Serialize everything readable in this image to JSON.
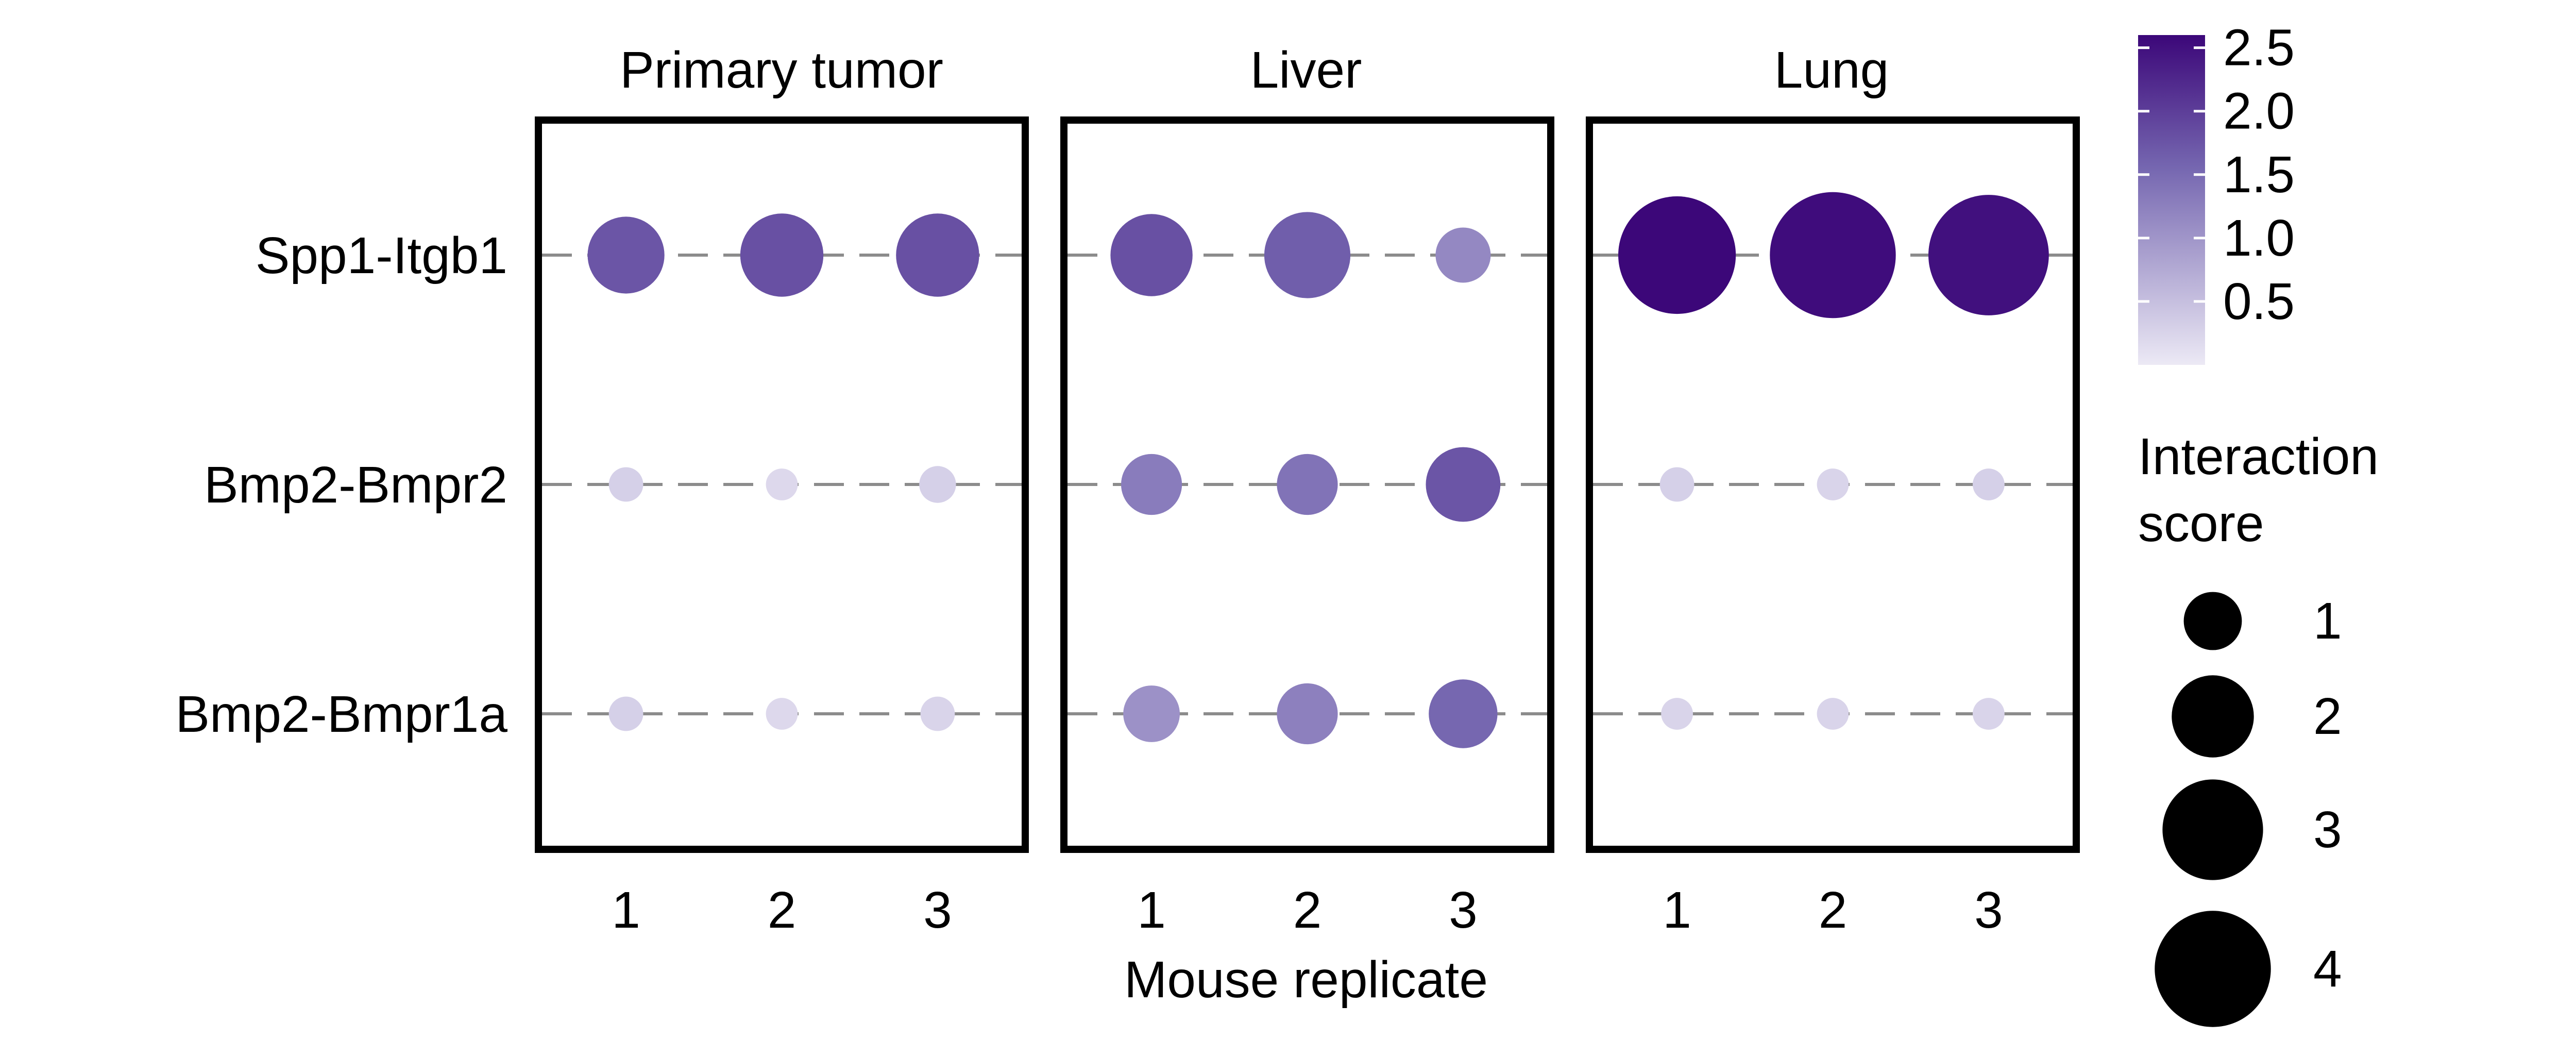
{
  "chart_data": {
    "type": "dot",
    "facets": [
      "Primary tumor",
      "Liver",
      "Lung"
    ],
    "categories": [
      "Spp1-Itgb1",
      "Bmp2-Bmpr2",
      "Bmp2-Bmpr1a"
    ],
    "x_ticks": [
      "1",
      "2",
      "3"
    ],
    "xlabel": "Mouse replicate",
    "ylabel": "",
    "color_range": [
      0,
      2.6
    ],
    "color_scale": {
      "low": "#ece9f5",
      "mid": "#7566b0",
      "high": "#3c0779"
    },
    "colorbar": {
      "ticks": [
        0.5,
        1.0,
        1.5,
        2.0,
        2.5
      ],
      "tick_labels": [
        "0.5",
        "1.0",
        "1.5",
        "2.0",
        "2.5"
      ]
    },
    "size_legend": {
      "title_lines": [
        "Interaction",
        "score"
      ],
      "values": [
        1,
        2,
        3,
        4
      ],
      "labels": [
        "1",
        "2",
        "3",
        "4"
      ]
    },
    "series": [
      {
        "facet": "Primary tumor",
        "category": "Spp1-Itgb1",
        "x": [
          1,
          2,
          3
        ],
        "score": [
          1.75,
          2.05,
          2.05
        ],
        "color_value": [
          1.75,
          1.8,
          1.8
        ]
      },
      {
        "facet": "Primary tumor",
        "category": "Bmp2-Bmpr2",
        "x": [
          1,
          2,
          3
        ],
        "score": [
          0.35,
          0.3,
          0.4
        ],
        "color_value": [
          0.3,
          0.2,
          0.3
        ]
      },
      {
        "facet": "Primary tumor",
        "category": "Bmp2-Bmpr1a",
        "x": [
          1,
          2,
          3
        ],
        "score": [
          0.35,
          0.3,
          0.35
        ],
        "color_value": [
          0.3,
          0.2,
          0.25
        ]
      },
      {
        "facet": "Liver",
        "category": "Spp1-Itgb1",
        "x": [
          1,
          2,
          3
        ],
        "score": [
          2.0,
          2.2,
          0.9
        ],
        "color_value": [
          1.8,
          1.65,
          1.15
        ]
      },
      {
        "facet": "Liver",
        "category": "Bmp2-Bmpr2",
        "x": [
          1,
          2,
          3
        ],
        "score": [
          1.1,
          1.1,
          1.65
        ],
        "color_value": [
          1.3,
          1.4,
          1.75
        ]
      },
      {
        "facet": "Liver",
        "category": "Bmp2-Bmpr1a",
        "x": [
          1,
          2,
          3
        ],
        "score": [
          0.95,
          1.1,
          1.4
        ],
        "color_value": [
          1.05,
          1.25,
          1.55
        ]
      },
      {
        "facet": "Lung",
        "category": "Spp1-Itgb1",
        "x": [
          1,
          2,
          3
        ],
        "score": [
          4.1,
          4.7,
          4.3
        ],
        "color_value": [
          2.6,
          2.55,
          2.5
        ]
      },
      {
        "facet": "Lung",
        "category": "Bmp2-Bmpr2",
        "x": [
          1,
          2,
          3
        ],
        "score": [
          0.35,
          0.3,
          0.3
        ],
        "color_value": [
          0.3,
          0.25,
          0.3
        ]
      },
      {
        "facet": "Lung",
        "category": "Bmp2-Bmpr1a",
        "x": [
          1,
          2,
          3
        ],
        "score": [
          0.3,
          0.3,
          0.3
        ],
        "color_value": [
          0.25,
          0.25,
          0.25
        ]
      }
    ]
  }
}
